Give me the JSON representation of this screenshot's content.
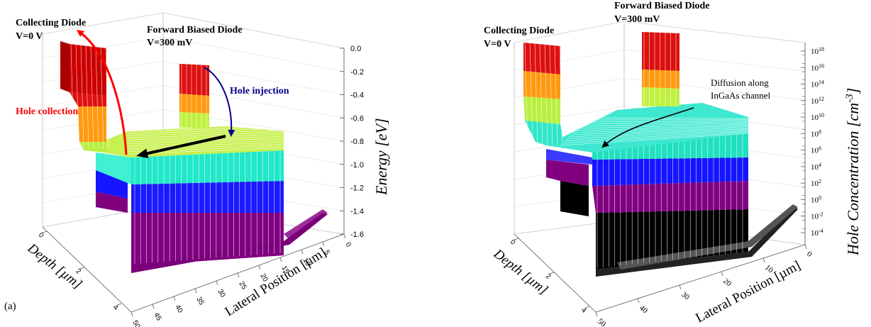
{
  "chart_data": [
    {
      "type": "surface3d",
      "panel_label": "(a)",
      "zlabel": "Energy [eV]",
      "xlabel": "Depth [µm]",
      "ylabel": "Lateral Position [µm]",
      "z_ticks": [
        "0.0",
        "-0.2",
        "-0.4",
        "-0.6",
        "-0.8",
        "-1.0",
        "-1.2",
        "-1.4",
        "-1.6"
      ],
      "z_range": [
        -1.6,
        0.0
      ],
      "depth_ticks": [
        "0",
        "2",
        "4"
      ],
      "lateral_ticks": [
        "0",
        "5",
        "10",
        "15",
        "20",
        "25",
        "30",
        "35",
        "40",
        "45",
        "50"
      ],
      "annotations": {
        "collecting_title": "Collecting Diode",
        "collecting_bias": "V=0 V",
        "forward_title": "Forward Biased Diode",
        "forward_bias": "V=300 mV",
        "injection": "Hole injection",
        "collection": "Hole collection"
      },
      "colormap_bands": [
        "#800080",
        "#0000ff",
        "#00e0c0",
        "#c0ff40",
        "#ff8c00",
        "#dd0000"
      ],
      "colors": {
        "collection_arrow": "#ff0000",
        "injection_arrow": "#00008b",
        "diffusion_arrow": "#000000"
      }
    },
    {
      "type": "surface3d",
      "zlabel": "Hole Concentration [cm-3]",
      "zlabel_parts": {
        "text": "Hole Concentration [cm",
        "exp": "-3",
        "close": "]"
      },
      "xlabel": "Depth [µm]",
      "ylabel": "Lateral Position [µm]",
      "z_scale": "log",
      "z_ticks": [
        {
          "base": "10",
          "exp": "18"
        },
        {
          "base": "10",
          "exp": "16"
        },
        {
          "base": "10",
          "exp": "14"
        },
        {
          "base": "10",
          "exp": "12"
        },
        {
          "base": "10",
          "exp": "10"
        },
        {
          "base": "10",
          "exp": "8"
        },
        {
          "base": "10",
          "exp": "6"
        },
        {
          "base": "10",
          "exp": "4"
        },
        {
          "base": "10",
          "exp": "2"
        },
        {
          "base": "10",
          "exp": "0"
        },
        {
          "base": "10",
          "exp": "-2"
        },
        {
          "base": "10",
          "exp": "-4"
        }
      ],
      "depth_ticks": [
        "0",
        "2",
        "4"
      ],
      "lateral_ticks": [
        "0",
        "10",
        "20",
        "30",
        "40",
        "50"
      ],
      "annotations": {
        "collecting_title": "Collecting Diode",
        "collecting_bias": "V=0 V",
        "forward_title": "Forward Biased Diode",
        "forward_bias": "V=300 mV",
        "diffusion_line1": "Diffusion along",
        "diffusion_line2": "InGaAs channel"
      },
      "colormap_bands": [
        "#000000",
        "#800080",
        "#0000ff",
        "#00e0c0",
        "#c0ff40",
        "#ff8c00",
        "#dd0000"
      ]
    }
  ]
}
